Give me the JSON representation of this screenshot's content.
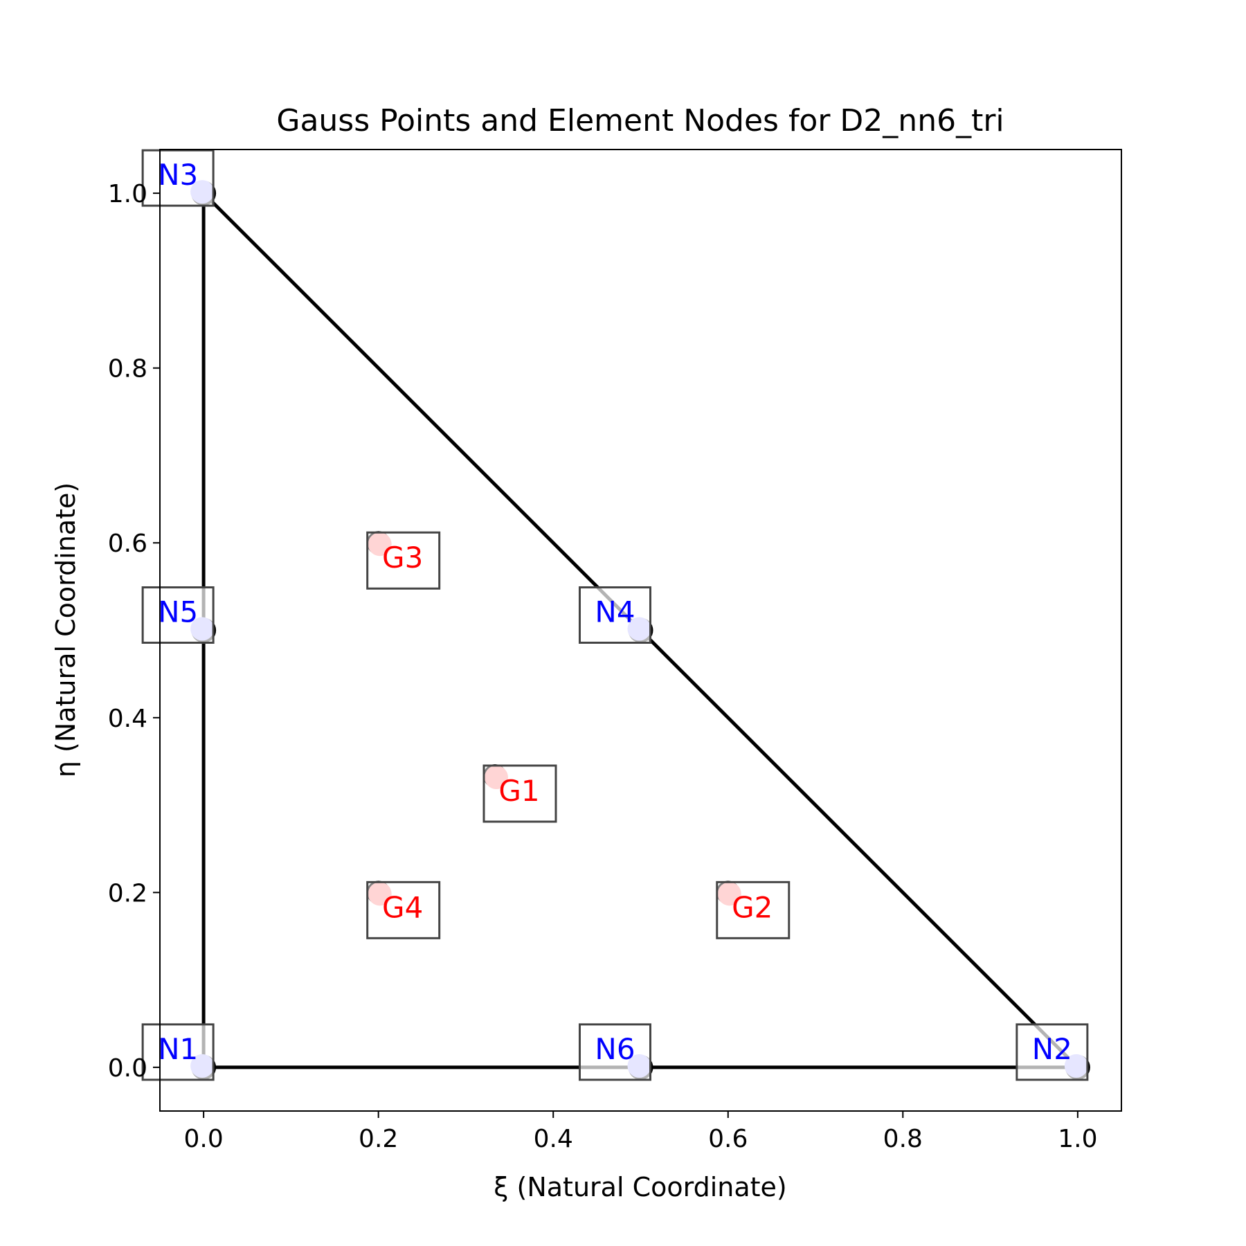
{
  "chart_data": {
    "type": "scatter",
    "title": "Gauss Points and Element Nodes for D2_nn6_tri",
    "xlabel": "ξ (Natural Coordinate)",
    "ylabel": "η (Natural Coordinate)",
    "xlim": [
      -0.05,
      1.05
    ],
    "ylim": [
      -0.05,
      1.05
    ],
    "xticks": [
      "0.0",
      "0.2",
      "0.4",
      "0.6",
      "0.8",
      "1.0"
    ],
    "yticks": [
      "0.0",
      "0.2",
      "0.4",
      "0.6",
      "0.8",
      "1.0"
    ],
    "grid": false,
    "element_edges": [
      [
        0,
        0
      ],
      [
        1,
        0
      ],
      [
        0,
        1
      ],
      [
        0,
        0
      ]
    ],
    "nodes": [
      {
        "label": "N1",
        "x": 0.0,
        "y": 0.0
      },
      {
        "label": "N2",
        "x": 1.0,
        "y": 0.0
      },
      {
        "label": "N3",
        "x": 0.0,
        "y": 1.0
      },
      {
        "label": "N4",
        "x": 0.5,
        "y": 0.5
      },
      {
        "label": "N5",
        "x": 0.0,
        "y": 0.5
      },
      {
        "label": "N6",
        "x": 0.5,
        "y": 0.0
      }
    ],
    "gauss_points": [
      {
        "label": "G1",
        "x": 0.3333,
        "y": 0.3333
      },
      {
        "label": "G2",
        "x": 0.6,
        "y": 0.2
      },
      {
        "label": "G3",
        "x": 0.2,
        "y": 0.6
      },
      {
        "label": "G4",
        "x": 0.2,
        "y": 0.2
      }
    ],
    "colors": {
      "node_fill": "#aaaaff",
      "node_text": "#0000ff",
      "gauss_fill": "#ffaaaa",
      "gauss_text": "#ff0000",
      "edge": "#000000"
    }
  }
}
